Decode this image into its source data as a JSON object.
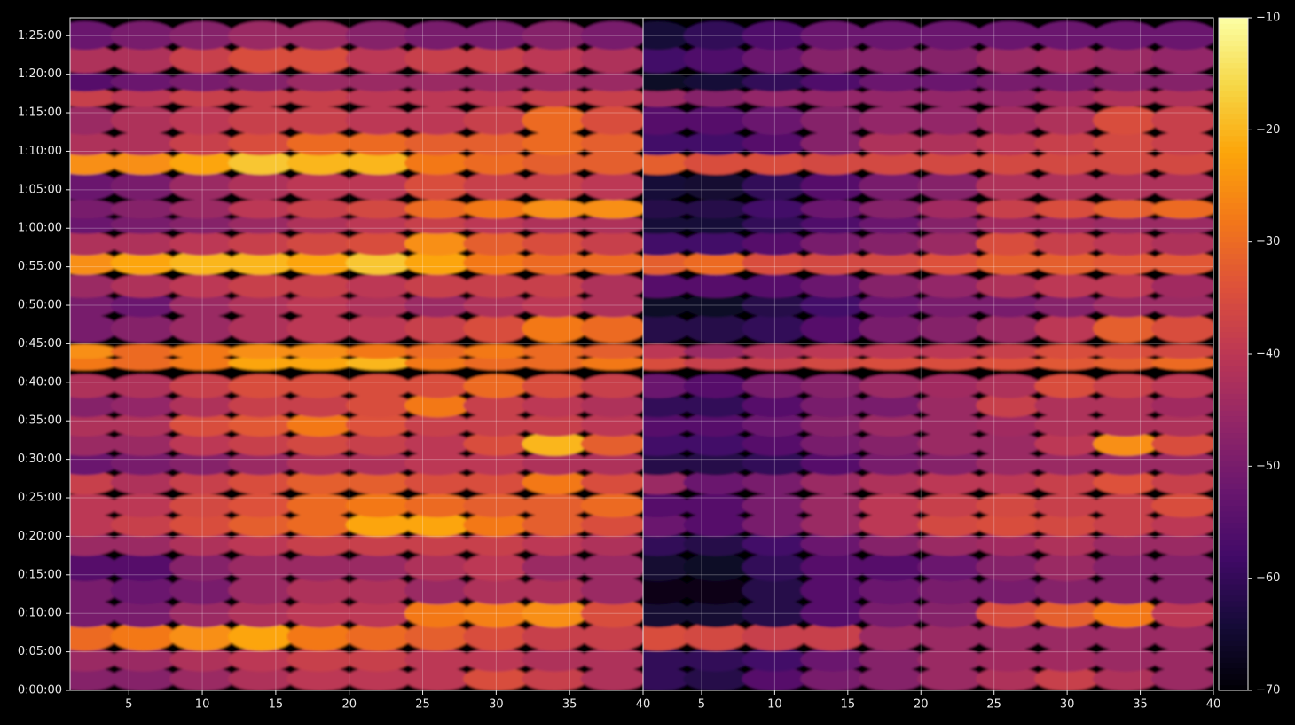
{
  "chart_data": [
    {
      "type": "heatmap",
      "colormap": "inferno",
      "grid": true,
      "x": [
        2,
        6,
        10,
        14,
        18,
        22,
        26,
        30,
        34,
        38
      ],
      "y": [
        90,
        240,
        420,
        600,
        780,
        960,
        1140,
        1290,
        1440,
        1620,
        1770,
        1920,
        2070,
        2220,
        2370,
        2550,
        2640,
        2820,
        3000,
        3150,
        3330,
        3480,
        3630,
        3750,
        3930,
        4110,
        4260,
        4440,
        4620,
        4740,
        4920,
        5100
      ],
      "values": [
        [
          -48,
          -48,
          -45,
          -42,
          -40,
          -40,
          -40,
          -35,
          -38,
          -42
        ],
        [
          -45,
          -45,
          -42,
          -40,
          -38,
          -38,
          -40,
          -40,
          -42,
          -42
        ],
        [
          -30,
          -28,
          -25,
          -22,
          -28,
          -30,
          -32,
          -35,
          -38,
          -38
        ],
        [
          -50,
          -50,
          -45,
          -42,
          -40,
          -40,
          -28,
          -27,
          -25,
          -35
        ],
        [
          -50,
          -52,
          -50,
          -45,
          -42,
          -42,
          -45,
          -42,
          -42,
          -45
        ],
        [
          -55,
          -55,
          -48,
          -45,
          -45,
          -45,
          -42,
          -40,
          -45,
          -45
        ],
        [
          -45,
          -45,
          -42,
          -40,
          -38,
          -38,
          -38,
          -38,
          -40,
          -42
        ],
        [
          -40,
          -38,
          -35,
          -32,
          -30,
          -22,
          -22,
          -28,
          -32,
          -35
        ],
        [
          -40,
          -40,
          -36,
          -34,
          -30,
          -28,
          -30,
          -32,
          -32,
          -30
        ],
        [
          -38,
          -42,
          -38,
          -35,
          -32,
          -32,
          -35,
          -35,
          -28,
          -35
        ],
        [
          -52,
          -50,
          -48,
          -45,
          -42,
          -42,
          -40,
          -40,
          -42,
          -42
        ],
        [
          -45,
          -45,
          -40,
          -38,
          -36,
          -38,
          -40,
          -35,
          -20,
          -32
        ],
        [
          -42,
          -42,
          -35,
          -33,
          -28,
          -34,
          -38,
          -38,
          -38,
          -40
        ],
        [
          -48,
          -46,
          -42,
          -38,
          -38,
          -35,
          -28,
          -38,
          -40,
          -42
        ],
        [
          -42,
          -42,
          -38,
          -35,
          -35,
          -35,
          -35,
          -30,
          -35,
          -38
        ],
        [
          -28,
          -30,
          -28,
          -22,
          -22,
          -20,
          -28,
          -30,
          -30,
          -28
        ],
        [
          -25,
          -30,
          -28,
          -25,
          -25,
          -28,
          -30,
          -28,
          -30,
          -32
        ],
        [
          -50,
          -48,
          -45,
          -42,
          -40,
          -40,
          -38,
          -35,
          -28,
          -30
        ],
        [
          -50,
          -52,
          -45,
          -42,
          -40,
          -42,
          -45,
          -42,
          -40,
          -42
        ],
        [
          -45,
          -42,
          -40,
          -38,
          -38,
          -40,
          -38,
          -38,
          -38,
          -42
        ],
        [
          -25,
          -22,
          -20,
          -20,
          -22,
          -18,
          -22,
          -28,
          -30,
          -30
        ],
        [
          -42,
          -42,
          -40,
          -38,
          -36,
          -35,
          -25,
          -32,
          -35,
          -38
        ],
        [
          -52,
          -50,
          -48,
          -45,
          -42,
          -40,
          -38,
          -40,
          -42,
          -42
        ],
        [
          -50,
          -48,
          -45,
          -40,
          -38,
          -36,
          -30,
          -28,
          -25,
          -25
        ],
        [
          -52,
          -50,
          -45,
          -42,
          -40,
          -40,
          -35,
          -38,
          -38,
          -40
        ],
        [
          -25,
          -25,
          -22,
          -18,
          -20,
          -20,
          -28,
          -30,
          -32,
          -32
        ],
        [
          -42,
          -42,
          -38,
          -35,
          -30,
          -30,
          -32,
          -32,
          -30,
          -32
        ],
        [
          -45,
          -42,
          -40,
          -38,
          -38,
          -40,
          -40,
          -38,
          -30,
          -35
        ],
        [
          -38,
          -40,
          -38,
          -38,
          -38,
          -40,
          -40,
          -40,
          -38,
          -38
        ],
        [
          -55,
          -52,
          -50,
          -48,
          -45,
          -45,
          -45,
          -45,
          -45,
          -45
        ],
        [
          -42,
          -42,
          -38,
          -35,
          -35,
          -40,
          -38,
          -38,
          -40,
          -42
        ],
        [
          -52,
          -50,
          -48,
          -45,
          -45,
          -48,
          -50,
          -50,
          -48,
          -50
        ]
      ],
      "xlim": [
        1,
        40
      ],
      "xticks": [
        5,
        10,
        15,
        20,
        25,
        30,
        35,
        40
      ],
      "ylim": [
        0,
        5240
      ],
      "yticks": [
        {
          "value": 0,
          "label": "0:00:00"
        },
        {
          "value": 300,
          "label": "0:05:00"
        },
        {
          "value": 600,
          "label": "0:10:00"
        },
        {
          "value": 900,
          "label": "0:15:00"
        },
        {
          "value": 1200,
          "label": "0:20:00"
        },
        {
          "value": 1500,
          "label": "0:25:00"
        },
        {
          "value": 1800,
          "label": "0:30:00"
        },
        {
          "value": 2100,
          "label": "0:35:00"
        },
        {
          "value": 2400,
          "label": "0:40:00"
        },
        {
          "value": 2700,
          "label": "0:45:00"
        },
        {
          "value": 3000,
          "label": "0:50:00"
        },
        {
          "value": 3300,
          "label": "0:55:00"
        },
        {
          "value": 3600,
          "label": "1:00:00"
        },
        {
          "value": 3900,
          "label": "1:05:00"
        },
        {
          "value": 4200,
          "label": "1:10:00"
        },
        {
          "value": 4500,
          "label": "1:15:00"
        },
        {
          "value": 4800,
          "label": "1:20:00"
        },
        {
          "value": 5100,
          "label": "1:25:00"
        }
      ],
      "colorbar": {
        "lim": [
          -70,
          -10
        ],
        "ticks": [
          {
            "value": -10,
            "label": "−10"
          },
          {
            "value": -20,
            "label": "−20"
          },
          {
            "value": -30,
            "label": "−30"
          },
          {
            "value": -40,
            "label": "−40"
          },
          {
            "value": -50,
            "label": "−50"
          },
          {
            "value": -60,
            "label": "−60"
          },
          {
            "value": -70,
            "label": "−70"
          }
        ]
      }
    },
    {
      "type": "heatmap",
      "colormap": "inferno",
      "grid": true,
      "sharey": true,
      "x": [
        2,
        6,
        10,
        14,
        18,
        22,
        26,
        30,
        34,
        38
      ],
      "y": [
        90,
        240,
        420,
        600,
        780,
        960,
        1140,
        1290,
        1440,
        1620,
        1770,
        1920,
        2070,
        2220,
        2370,
        2550,
        2640,
        2820,
        3000,
        3150,
        3330,
        3480,
        3630,
        3750,
        3930,
        4110,
        4260,
        4440,
        4620,
        4740,
        4920,
        5100
      ],
      "values": [
        [
          -60,
          -62,
          -55,
          -50,
          -48,
          -45,
          -42,
          -38,
          -42,
          -45
        ],
        [
          -60,
          -60,
          -58,
          -52,
          -48,
          -45,
          -44,
          -44,
          -45,
          -45
        ],
        [
          -35,
          -36,
          -38,
          -38,
          -45,
          -45,
          -45,
          -45,
          -45,
          -45
        ],
        [
          -65,
          -65,
          -62,
          -55,
          -50,
          -48,
          -35,
          -32,
          -28,
          -40
        ],
        [
          -68,
          -68,
          -62,
          -55,
          -52,
          -50,
          -50,
          -48,
          -48,
          -48
        ],
        [
          -65,
          -66,
          -60,
          -55,
          -55,
          -52,
          -48,
          -45,
          -48,
          -48
        ],
        [
          -60,
          -62,
          -58,
          -52,
          -48,
          -45,
          -44,
          -42,
          -45,
          -45
        ],
        [
          -52,
          -55,
          -50,
          -45,
          -40,
          -36,
          -35,
          -36,
          -38,
          -40
        ],
        [
          -55,
          -55,
          -50,
          -45,
          -40,
          -38,
          -36,
          -38,
          -38,
          -35
        ],
        [
          -45,
          -52,
          -50,
          -45,
          -42,
          -40,
          -40,
          -38,
          -34,
          -38
        ],
        [
          -62,
          -62,
          -60,
          -55,
          -50,
          -48,
          -45,
          -45,
          -45,
          -45
        ],
        [
          -58,
          -58,
          -55,
          -50,
          -48,
          -45,
          -45,
          -40,
          -25,
          -35
        ],
        [
          -55,
          -55,
          -52,
          -48,
          -45,
          -45,
          -44,
          -42,
          -42,
          -42
        ],
        [
          -60,
          -60,
          -55,
          -50,
          -50,
          -45,
          -38,
          -42,
          -42,
          -44
        ],
        [
          -52,
          -55,
          -50,
          -48,
          -45,
          -44,
          -42,
          -35,
          -38,
          -40
        ],
        [
          -35,
          -38,
          -38,
          -36,
          -35,
          -35,
          -34,
          -33,
          -32,
          -30
        ],
        [
          -40,
          -45,
          -42,
          -40,
          -40,
          -40,
          -38,
          -35,
          -35,
          -36
        ],
        [
          -62,
          -62,
          -60,
          -55,
          -50,
          -48,
          -45,
          -40,
          -32,
          -35
        ],
        [
          -66,
          -66,
          -62,
          -58,
          -52,
          -50,
          -50,
          -48,
          -45,
          -45
        ],
        [
          -55,
          -55,
          -55,
          -52,
          -48,
          -46,
          -42,
          -40,
          -40,
          -44
        ],
        [
          -32,
          -30,
          -35,
          -36,
          -36,
          -34,
          -32,
          -32,
          -33,
          -33
        ],
        [
          -58,
          -58,
          -55,
          -50,
          -48,
          -45,
          -35,
          -38,
          -40,
          -42
        ],
        [
          -64,
          -64,
          -60,
          -56,
          -52,
          -48,
          -44,
          -44,
          -45,
          -45
        ],
        [
          -62,
          -62,
          -58,
          -52,
          -48,
          -44,
          -38,
          -35,
          -32,
          -30
        ],
        [
          -64,
          -65,
          -60,
          -55,
          -50,
          -48,
          -42,
          -42,
          -42,
          -42
        ],
        [
          -32,
          -35,
          -35,
          -36,
          -36,
          -36,
          -36,
          -36,
          -36,
          -36
        ],
        [
          -58,
          -58,
          -55,
          -48,
          -42,
          -42,
          -40,
          -38,
          -36,
          -38
        ],
        [
          -55,
          -55,
          -52,
          -48,
          -46,
          -46,
          -44,
          -42,
          -35,
          -38
        ],
        [
          -45,
          -48,
          -46,
          -46,
          -46,
          -46,
          -46,
          -44,
          -42,
          -42
        ],
        [
          -66,
          -64,
          -60,
          -56,
          -52,
          -52,
          -50,
          -50,
          -48,
          -48
        ],
        [
          -58,
          -56,
          -52,
          -48,
          -48,
          -48,
          -45,
          -44,
          -45,
          -46
        ],
        [
          -64,
          -60,
          -56,
          -52,
          -52,
          -52,
          -52,
          -52,
          -52,
          -52
        ]
      ],
      "xlim": [
        1,
        40
      ],
      "xticks": [
        5,
        10,
        15,
        20,
        25,
        30,
        35,
        40
      ],
      "ylim": [
        0,
        5240
      ]
    }
  ]
}
